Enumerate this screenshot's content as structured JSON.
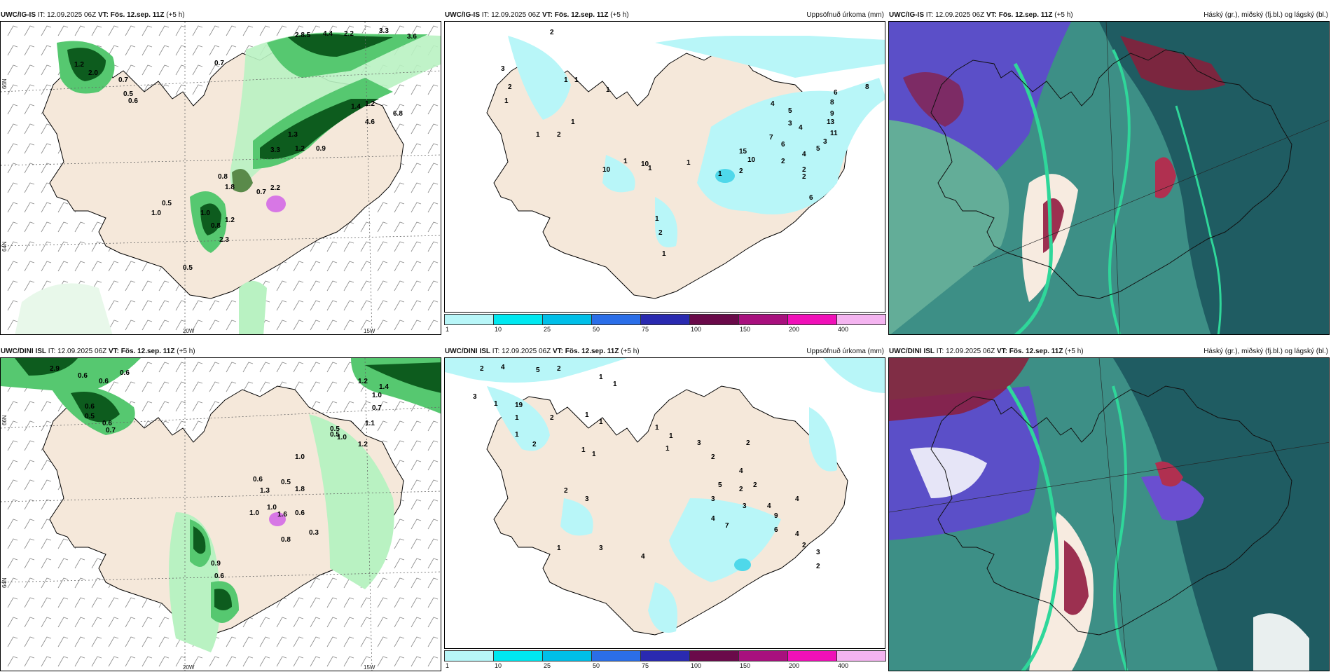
{
  "colors": {
    "land": "#f5e8da",
    "sea": "#ffffff",
    "precip_light": "#b9f2c2",
    "precip_mid": "#56c870",
    "precip_dark": "#0d5c1e",
    "accum_light": "#b8f6f8",
    "accum_mid": "#4fd8ea",
    "cloud_high": "#5b4fc8",
    "cloud_mid": "#3d8f86",
    "cloud_low": "#1f5c62",
    "cloud_dense": "#8c1c3a"
  },
  "panels": [
    {
      "id": "uwc-igis-precip",
      "model": "UWC/IG-IS",
      "it_text": "IT: 12.09.2025 06Z",
      "vt_text": "VT: Fös. 12.sep. 11Z",
      "lead": "(+5 h)",
      "right_title": "",
      "lat_labels": [
        "66N",
        "64N",
        "65N"
      ],
      "lon_labels": [
        "20W",
        "15W"
      ],
      "values": [
        "0.7",
        "2.8.5",
        "4.4",
        "2.2",
        "3.3",
        "3.6",
        "1.2",
        "2.0",
        "0.7",
        "0.5",
        "0.6",
        "1.4",
        "1.2",
        "4.6",
        "6.8",
        "1.3",
        "1.2",
        "3.3",
        "0.9",
        "0.8",
        "1.8",
        "0.7",
        "2.2",
        "0.5",
        "1.0",
        "1.0",
        "0.8",
        "1.2",
        "2.3",
        "0.5"
      ]
    },
    {
      "id": "uwc-igis-accum",
      "model": "UWC/IG-IS",
      "it_text": "IT: 12.09.2025 06Z",
      "vt_text": "VT: Fös. 12.sep. 11Z",
      "lead": "(+5 h)",
      "right_title": "Uppsöfnuð úrkoma (mm)",
      "values": [
        "2",
        "3",
        "2",
        "1",
        "1",
        "1",
        "1",
        "2",
        "1",
        "1",
        "8",
        "6",
        "8",
        "9",
        "13",
        "11",
        "4",
        "5",
        "3",
        "4",
        "7",
        "6",
        "2",
        "3",
        "4",
        "5",
        "2",
        "15",
        "10",
        "2",
        "2",
        "10",
        "1",
        "1",
        "10",
        "6",
        "1",
        "1",
        "1",
        "2",
        "1"
      ]
    },
    {
      "id": "uwc-igis-cloud",
      "model": "UWC/IG-IS",
      "it_text": "IT: 12.09.2025 06Z",
      "vt_text": "VT: Fös. 12.sep. 11Z",
      "lead": "(+5 h)",
      "right_title": "Háský (gr.), miðský (fj.bl.) og lágský (bl.)"
    },
    {
      "id": "uwc-dini-precip",
      "model": "UWC/DINI ISL",
      "it_text": "IT: 12.09.2025 06Z",
      "vt_text": "VT: Fös. 12.sep. 11Z",
      "lead": "(+5 h)",
      "right_title": "",
      "lat_labels": [
        "66N",
        "64N",
        "65N"
      ],
      "lon_labels": [
        "20W",
        "15W"
      ],
      "values": [
        "2.9",
        "0.6",
        "0.6",
        "0.6",
        "0.6",
        "0.5",
        "0.6",
        "0.7",
        "1.2",
        "1.4",
        "1.0",
        "0.7",
        "1.1",
        "0.5",
        "1.0",
        "1.2",
        "1.0",
        "0.5",
        "0.5",
        "1.8",
        "0.6",
        "1.3",
        "1.0",
        "1.0",
        "1.6",
        "0.6",
        "0.3",
        "0.8",
        "0.9",
        "0.6"
      ]
    },
    {
      "id": "uwc-dini-accum",
      "model": "UWC/DINI ISL",
      "it_text": "IT: 12.09.2025 06Z",
      "vt_text": "VT: Fös. 12.sep. 11Z",
      "lead": "(+5 h)",
      "right_title": "Uppsöfnuð úrkoma (mm)",
      "values": [
        "2",
        "4",
        "5",
        "2",
        "1",
        "1",
        "3",
        "1",
        "19",
        "1",
        "2",
        "1",
        "2",
        "1",
        "1",
        "1",
        "1",
        "1",
        "1",
        "1",
        "3",
        "2",
        "2",
        "5",
        "2",
        "3",
        "4",
        "2",
        "3",
        "4",
        "7",
        "4",
        "9",
        "4",
        "6",
        "4",
        "2",
        "3",
        "2",
        "2",
        "3",
        "1",
        "3",
        "4"
      ]
    },
    {
      "id": "uwc-dini-cloud",
      "model": "UWC/DINI ISL",
      "it_text": "IT: 12.09.2025 06Z",
      "vt_text": "VT: Fös. 12.sep. 11Z",
      "lead": "(+5 h)",
      "right_title": "Háský (gr.), miðský (fj.bl.) og lágský (bl.)"
    }
  ],
  "colorbar": {
    "ticks": [
      "1",
      "10",
      "25",
      "50",
      "75",
      "100",
      "150",
      "200",
      "400"
    ],
    "colors": [
      "#b8f6f8",
      "#00e8f0",
      "#00bfe8",
      "#2b6ee8",
      "#2a2ab0",
      "#6a0a4a",
      "#a8107e",
      "#f010b8",
      "#f4b4f0"
    ]
  }
}
